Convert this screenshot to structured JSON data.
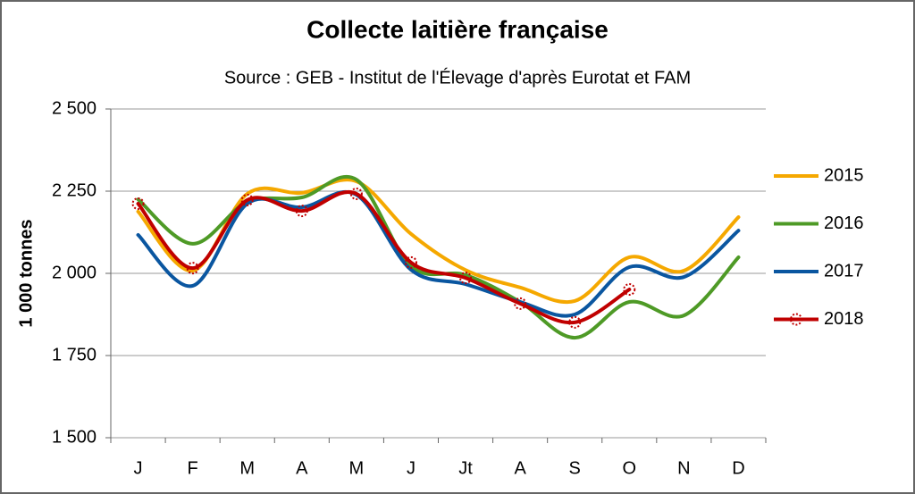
{
  "chart_data": {
    "type": "line",
    "title": "Collecte laitière française",
    "subtitle": "Source : GEB - Institut de l'Élevage d'après Eurotat et FAM",
    "y_label": "1 000 tonnes",
    "categories": [
      "J",
      "F",
      "M",
      "A",
      "M",
      "J",
      "Jt",
      "A",
      "S",
      "O",
      "N",
      "D"
    ],
    "series": [
      {
        "name": "2015",
        "color": "#f5a800",
        "values": [
          2188,
          2008,
          2242,
          2245,
          2280,
          2120,
          2010,
          1957,
          1916,
          2049,
          2008,
          2171
        ]
      },
      {
        "name": "2016",
        "color": "#4e9a26",
        "values": [
          2225,
          2090,
          2217,
          2231,
          2285,
          2022,
          1995,
          1913,
          1804,
          1913,
          1872,
          2049
        ]
      },
      {
        "name": "2017",
        "color": "#0a56a0",
        "values": [
          2117,
          1962,
          2212,
          2201,
          2239,
          2011,
          1967,
          1913,
          1875,
          2019,
          1989,
          2130
        ]
      },
      {
        "name": "2018",
        "color": "#c00000",
        "values": [
          2212,
          2016,
          2223,
          2190,
          2242,
          2033,
          1986,
          1908,
          1851,
          1951,
          null,
          null
        ]
      }
    ],
    "ylim": [
      1500,
      2500
    ],
    "yticks": [
      {
        "value": 1500,
        "label": "1 500"
      },
      {
        "value": 1750,
        "label": "1 750"
      },
      {
        "value": 2000,
        "label": "2 000"
      },
      {
        "value": 2250,
        "label": "2 250"
      },
      {
        "value": 2500,
        "label": "2 500"
      }
    ],
    "grid": true,
    "legend": "right"
  }
}
